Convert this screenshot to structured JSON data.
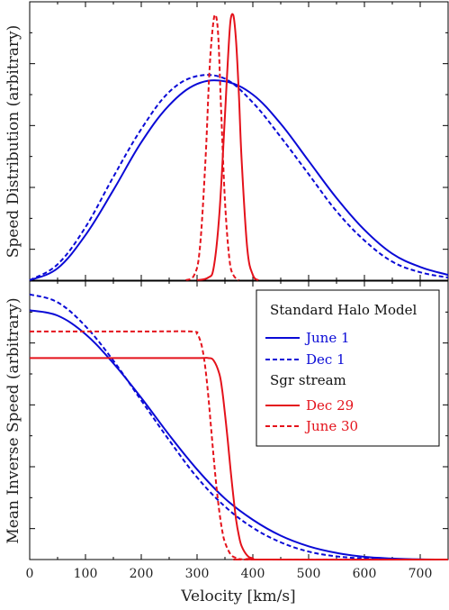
{
  "chart_data": [
    {
      "type": "line",
      "panel": "top",
      "ylabel": "Speed Distribution (arbitrary)",
      "xlim": [
        0,
        750
      ],
      "ylim": [
        0,
        1.05
      ],
      "series": [
        {
          "name": "June 1",
          "color": "#0a0ad6",
          "style": "solid",
          "x": [
            0,
            50,
            100,
            150,
            200,
            250,
            300,
            350,
            400,
            450,
            500,
            550,
            600,
            650,
            700,
            750
          ],
          "y": [
            0,
            0.045,
            0.17,
            0.34,
            0.52,
            0.66,
            0.74,
            0.75,
            0.7,
            0.59,
            0.45,
            0.31,
            0.19,
            0.1,
            0.05,
            0.02
          ]
        },
        {
          "name": "Dec 1",
          "color": "#0a0ad6",
          "style": "dashed",
          "x": [
            0,
            50,
            100,
            150,
            200,
            250,
            300,
            350,
            400,
            450,
            500,
            550,
            600,
            650,
            700,
            750
          ],
          "y": [
            0,
            0.06,
            0.2,
            0.39,
            0.57,
            0.71,
            0.77,
            0.76,
            0.67,
            0.54,
            0.4,
            0.26,
            0.15,
            0.07,
            0.03,
            0.01
          ]
        },
        {
          "name": "Dec 29",
          "color": "#e4121b",
          "style": "solid",
          "x": [
            300,
            320,
            330,
            340,
            350,
            355,
            360,
            365,
            370,
            375,
            380,
            390,
            400,
            410
          ],
          "y": [
            0,
            0.01,
            0.05,
            0.25,
            0.62,
            0.82,
            0.98,
            1.0,
            0.9,
            0.7,
            0.45,
            0.12,
            0.02,
            0
          ]
        },
        {
          "name": "June 30",
          "color": "#e4121b",
          "style": "dashed",
          "x": [
            280,
            295,
            305,
            315,
            322,
            328,
            333,
            338,
            343,
            350,
            358,
            365,
            375
          ],
          "y": [
            0,
            0.02,
            0.12,
            0.45,
            0.78,
            0.95,
            1.0,
            0.92,
            0.65,
            0.3,
            0.08,
            0.02,
            0
          ]
        }
      ]
    },
    {
      "type": "line",
      "panel": "bottom",
      "ylabel": "Mean Inverse Speed (arbitrary)",
      "xlabel": "Velocity [km/s]",
      "xlim": [
        0,
        750
      ],
      "xticks": [
        "0",
        "100",
        "200",
        "300",
        "400",
        "500",
        "600",
        "700"
      ],
      "ylim": [
        0,
        1.05
      ],
      "legend": {
        "position": "top-right",
        "groups": [
          {
            "title": "Standard Halo Model",
            "entries": [
              {
                "label": "June 1",
                "color": "#0a0ad6",
                "style": "solid"
              },
              {
                "label": "Dec 1",
                "color": "#0a0ad6",
                "style": "dashed"
              }
            ]
          },
          {
            "title": "Sgr stream",
            "entries": [
              {
                "label": "Dec 29",
                "color": "#e4121b",
                "style": "solid"
              },
              {
                "label": "June 30",
                "color": "#e4121b",
                "style": "dashed"
              }
            ]
          }
        ]
      },
      "series": [
        {
          "name": "June 1",
          "color": "#0a0ad6",
          "style": "solid",
          "x": [
            0,
            50,
            100,
            150,
            200,
            250,
            300,
            350,
            400,
            450,
            500,
            550,
            600,
            650,
            700,
            750
          ],
          "y": [
            0.94,
            0.92,
            0.85,
            0.74,
            0.61,
            0.47,
            0.34,
            0.23,
            0.15,
            0.09,
            0.05,
            0.025,
            0.01,
            0.004,
            0.001,
            0
          ]
        },
        {
          "name": "Dec 1",
          "color": "#0a0ad6",
          "style": "dashed",
          "x": [
            0,
            50,
            100,
            150,
            200,
            250,
            300,
            350,
            400,
            450,
            500,
            550,
            600,
            650,
            700,
            750
          ],
          "y": [
            1.0,
            0.97,
            0.88,
            0.75,
            0.6,
            0.45,
            0.31,
            0.2,
            0.12,
            0.065,
            0.03,
            0.012,
            0.004,
            0.001,
            0,
            0
          ]
        },
        {
          "name": "Dec 29",
          "color": "#e4121b",
          "style": "solid",
          "x": [
            0,
            100,
            200,
            300,
            320,
            330,
            340,
            345,
            350,
            355,
            360,
            365,
            370,
            375,
            380,
            390,
            400,
            420,
            750
          ],
          "y": [
            0.76,
            0.76,
            0.76,
            0.76,
            0.76,
            0.75,
            0.7,
            0.64,
            0.55,
            0.45,
            0.34,
            0.24,
            0.15,
            0.09,
            0.05,
            0.015,
            0.005,
            0,
            0
          ]
        },
        {
          "name": "June 30",
          "color": "#e4121b",
          "style": "dashed",
          "x": [
            0,
            100,
            200,
            290,
            300,
            305,
            310,
            315,
            320,
            325,
            330,
            335,
            340,
            345,
            350,
            360,
            370,
            380,
            400,
            750
          ],
          "y": [
            0.86,
            0.86,
            0.86,
            0.86,
            0.85,
            0.83,
            0.79,
            0.72,
            0.62,
            0.5,
            0.38,
            0.27,
            0.18,
            0.11,
            0.065,
            0.02,
            0.006,
            0.001,
            0,
            0
          ]
        }
      ]
    }
  ]
}
